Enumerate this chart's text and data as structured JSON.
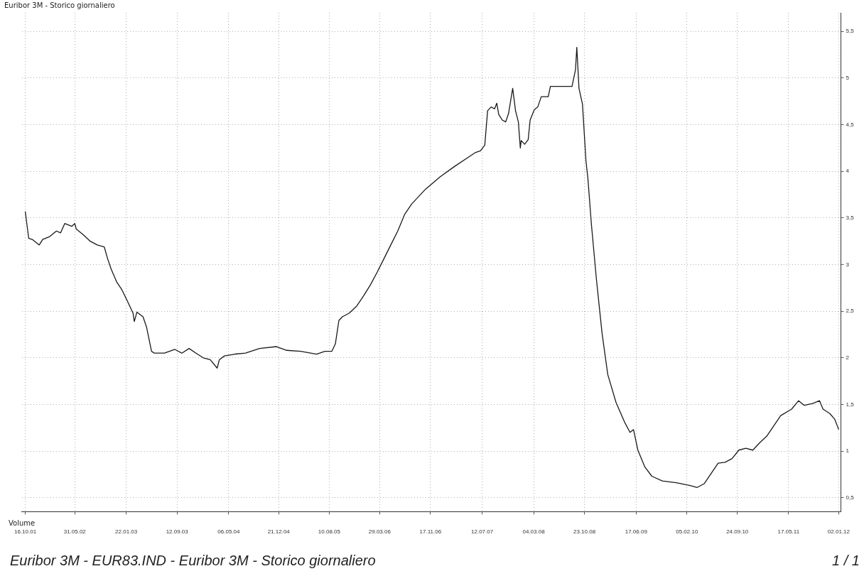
{
  "chart_data": {
    "type": "line",
    "title": "Euribor 3M - Storico giornaliero",
    "annotations": [
      "Volume",
      "Euribor 3M - EUR83.IND - Euribor 3M - Storico giornaliero",
      "1 / 1"
    ],
    "x": [
      "2001-10-16",
      "2001-10-23",
      "2001-11-01",
      "2001-11-17",
      "2001-12-19",
      "2002-01-04",
      "2002-02-05",
      "2002-03-08",
      "2002-03-27",
      "2002-04-15",
      "2002-05-17",
      "2002-05-31",
      "2002-06-07",
      "2002-07-09",
      "2002-08-10",
      "2002-09-11",
      "2002-10-13",
      "2002-10-29",
      "2002-11-14",
      "2002-12-10",
      "2003-01-02",
      "2003-01-27",
      "2003-02-22",
      "2003-02-28",
      "2003-03-12",
      "2003-04-09",
      "2003-04-25",
      "2003-05-18",
      "2003-05-31",
      "2003-07-16",
      "2003-09-02",
      "2003-10-04",
      "2003-11-06",
      "2003-12-08",
      "2004-01-10",
      "2004-02-11",
      "2004-03-14",
      "2004-03-24",
      "2004-04-16",
      "2004-06-04",
      "2004-07-22",
      "2004-09-24",
      "2004-12-11",
      "2005-01-27",
      "2005-04-01",
      "2005-06-13",
      "2005-07-21",
      "2005-08-22",
      "2005-09-07",
      "2005-09-23",
      "2005-10-09",
      "2005-11-10",
      "2005-12-12",
      "2006-01-13",
      "2006-02-14",
      "2006-03-18",
      "2006-04-17",
      "2006-05-19",
      "2006-06-20",
      "2006-07-22",
      "2006-08-23",
      "2006-10-26",
      "2006-12-31",
      "2007-03-06",
      "2007-05-09",
      "2007-06-10",
      "2007-07-04",
      "2007-07-24",
      "2007-08-06",
      "2007-08-22",
      "2007-09-07",
      "2007-09-17",
      "2007-09-26",
      "2007-10-12",
      "2007-10-28",
      "2007-11-10",
      "2007-11-29",
      "2007-12-12",
      "2007-12-25",
      "2008-01-03",
      "2008-01-07",
      "2008-01-23",
      "2008-02-08",
      "2008-02-17",
      "2008-03-07",
      "2008-03-23",
      "2008-04-08",
      "2008-05-10",
      "2008-05-20",
      "2008-06-11",
      "2008-07-13",
      "2008-08-27",
      "2008-09-12",
      "2008-09-18",
      "2008-09-28",
      "2008-10-14",
      "2008-10-30",
      "2008-11-08",
      "2008-11-24",
      "2008-12-17",
      "2009-01-12",
      "2009-02-07",
      "2009-03-17",
      "2009-04-25",
      "2009-05-20",
      "2009-06-05",
      "2009-06-25",
      "2009-07-27",
      "2009-08-28",
      "2009-10-15",
      "2009-12-18",
      "2010-02-20",
      "2010-03-24",
      "2010-04-25",
      "2010-05-27",
      "2010-06-28",
      "2010-07-30",
      "2010-08-31",
      "2010-10-01",
      "2010-11-02",
      "2010-12-04",
      "2011-01-05",
      "2011-02-06",
      "2011-03-10",
      "2011-04-11",
      "2011-05-31",
      "2011-07-02",
      "2011-07-28",
      "2011-09-04",
      "2011-10-06",
      "2011-10-22",
      "2011-11-23",
      "2011-12-15",
      "2012-01-02"
    ],
    "series": [
      {
        "color": "#1a1a1a",
        "values": [
          3.57,
          3.44,
          3.28,
          3.27,
          3.21,
          3.27,
          3.3,
          3.36,
          3.34,
          3.44,
          3.41,
          3.44,
          3.38,
          3.32,
          3.25,
          3.21,
          3.19,
          3.06,
          2.95,
          2.81,
          2.73,
          2.61,
          2.48,
          2.39,
          2.49,
          2.44,
          2.33,
          2.07,
          2.05,
          2.05,
          2.09,
          2.05,
          2.1,
          2.05,
          2.0,
          1.98,
          1.89,
          1.98,
          2.02,
          2.04,
          2.05,
          2.1,
          2.12,
          2.08,
          2.07,
          2.04,
          2.07,
          2.07,
          2.15,
          2.4,
          2.44,
          2.48,
          2.55,
          2.66,
          2.78,
          2.92,
          3.06,
          3.21,
          3.36,
          3.54,
          3.65,
          3.81,
          3.94,
          4.05,
          4.15,
          4.2,
          4.22,
          4.28,
          4.65,
          4.69,
          4.67,
          4.73,
          4.61,
          4.55,
          4.53,
          4.62,
          4.89,
          4.65,
          4.53,
          4.25,
          4.33,
          4.29,
          4.34,
          4.55,
          4.66,
          4.69,
          4.8,
          4.8,
          4.91,
          4.91,
          4.91,
          4.91,
          5.09,
          5.33,
          4.89,
          4.72,
          4.11,
          3.92,
          3.43,
          2.84,
          2.26,
          1.82,
          1.52,
          1.31,
          1.2,
          1.23,
          1.01,
          0.83,
          0.73,
          0.68,
          0.66,
          0.63,
          0.61,
          0.65,
          0.76,
          0.87,
          0.88,
          0.92,
          1.01,
          1.03,
          1.01,
          1.09,
          1.16,
          1.27,
          1.38,
          1.45,
          1.54,
          1.49,
          1.51,
          1.54,
          1.45,
          1.4,
          1.34,
          1.23
        ]
      }
    ],
    "xlim": [
      "2001-10-01",
      "2012-01-12"
    ],
    "xticks": [
      {
        "value": "2001-10-16",
        "label": "16.10.01"
      },
      {
        "value": "2002-05-31",
        "label": "31.05.02"
      },
      {
        "value": "2003-01-22",
        "label": "22.01.03"
      },
      {
        "value": "2003-09-12",
        "label": "12.09.03"
      },
      {
        "value": "2004-05-06",
        "label": "06.05.04"
      },
      {
        "value": "2004-12-21",
        "label": "21.12.04"
      },
      {
        "value": "2005-08-10",
        "label": "10.08.05"
      },
      {
        "value": "2006-03-29",
        "label": "29.03.06"
      },
      {
        "value": "2006-11-17",
        "label": "17.11.06"
      },
      {
        "value": "2007-07-12",
        "label": "12.07.07"
      },
      {
        "value": "2008-03-04",
        "label": "04.03.08"
      },
      {
        "value": "2008-10-23",
        "label": "23.10.08"
      },
      {
        "value": "2009-06-17",
        "label": "17.06.09"
      },
      {
        "value": "2010-02-05",
        "label": "05.02.10"
      },
      {
        "value": "2010-09-24",
        "label": "24.09.10"
      },
      {
        "value": "2011-05-17",
        "label": "17.05.11"
      },
      {
        "value": "2012-01-02",
        "label": "02.01.12"
      }
    ],
    "ylim": [
      0.35,
      5.7
    ],
    "yticks": [
      {
        "value": 0.5,
        "label": "0,5"
      },
      {
        "value": 1,
        "label": "1"
      },
      {
        "value": 1.5,
        "label": "1,5"
      },
      {
        "value": 2,
        "label": "2"
      },
      {
        "value": 2.5,
        "label": "2,5"
      },
      {
        "value": 3,
        "label": "3"
      },
      {
        "value": 3.5,
        "label": "3,5"
      },
      {
        "value": 4,
        "label": "4"
      },
      {
        "value": 4.5,
        "label": "4,5"
      },
      {
        "value": 5,
        "label": "5"
      },
      {
        "value": 5.5,
        "label": "5,5"
      }
    ],
    "grid": true,
    "legend": false,
    "marker": "none",
    "line_style": "solid"
  }
}
